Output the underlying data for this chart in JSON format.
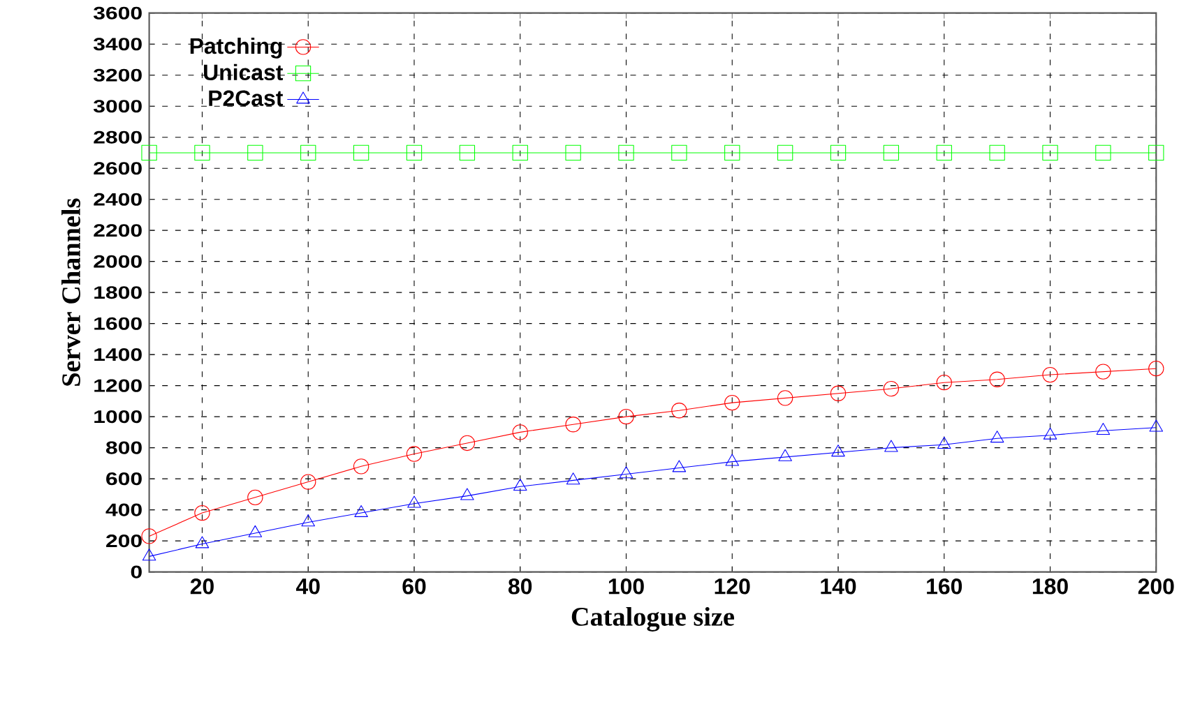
{
  "chart_data": {
    "type": "line",
    "xlabel": "Catalogue size",
    "ylabel": "Server Channels",
    "x": [
      10,
      20,
      30,
      40,
      50,
      60,
      70,
      80,
      90,
      100,
      110,
      120,
      130,
      140,
      150,
      160,
      170,
      180,
      190,
      200
    ],
    "series": [
      {
        "name": "Patching",
        "color": "#ff0000",
        "marker": "circle",
        "values": [
          230,
          380,
          480,
          580,
          680,
          760,
          830,
          900,
          950,
          1000,
          1040,
          1090,
          1120,
          1150,
          1180,
          1220,
          1240,
          1270,
          1290,
          1310
        ]
      },
      {
        "name": "Unicast",
        "color": "#00ff00",
        "marker": "square",
        "values": [
          2700,
          2700,
          2700,
          2700,
          2700,
          2700,
          2700,
          2700,
          2700,
          2700,
          2700,
          2700,
          2700,
          2700,
          2700,
          2700,
          2700,
          2700,
          2700,
          2700
        ]
      },
      {
        "name": "P2Cast",
        "color": "#0000ff",
        "marker": "triangle",
        "values": [
          100,
          180,
          250,
          320,
          380,
          440,
          490,
          550,
          590,
          630,
          670,
          710,
          740,
          770,
          800,
          820,
          860,
          880,
          910,
          930
        ]
      }
    ],
    "xlim": [
      10,
      200
    ],
    "xticks": [
      20,
      40,
      60,
      80,
      100,
      120,
      140,
      160,
      180,
      200
    ],
    "ylim": [
      0,
      3600
    ],
    "yticks": [
      0,
      200,
      400,
      600,
      800,
      1000,
      1200,
      1400,
      1600,
      1800,
      2000,
      2200,
      2400,
      2600,
      2800,
      3000,
      3200,
      3400,
      3600
    ],
    "grid": true,
    "legend": "top left",
    "line_style": "solid"
  }
}
